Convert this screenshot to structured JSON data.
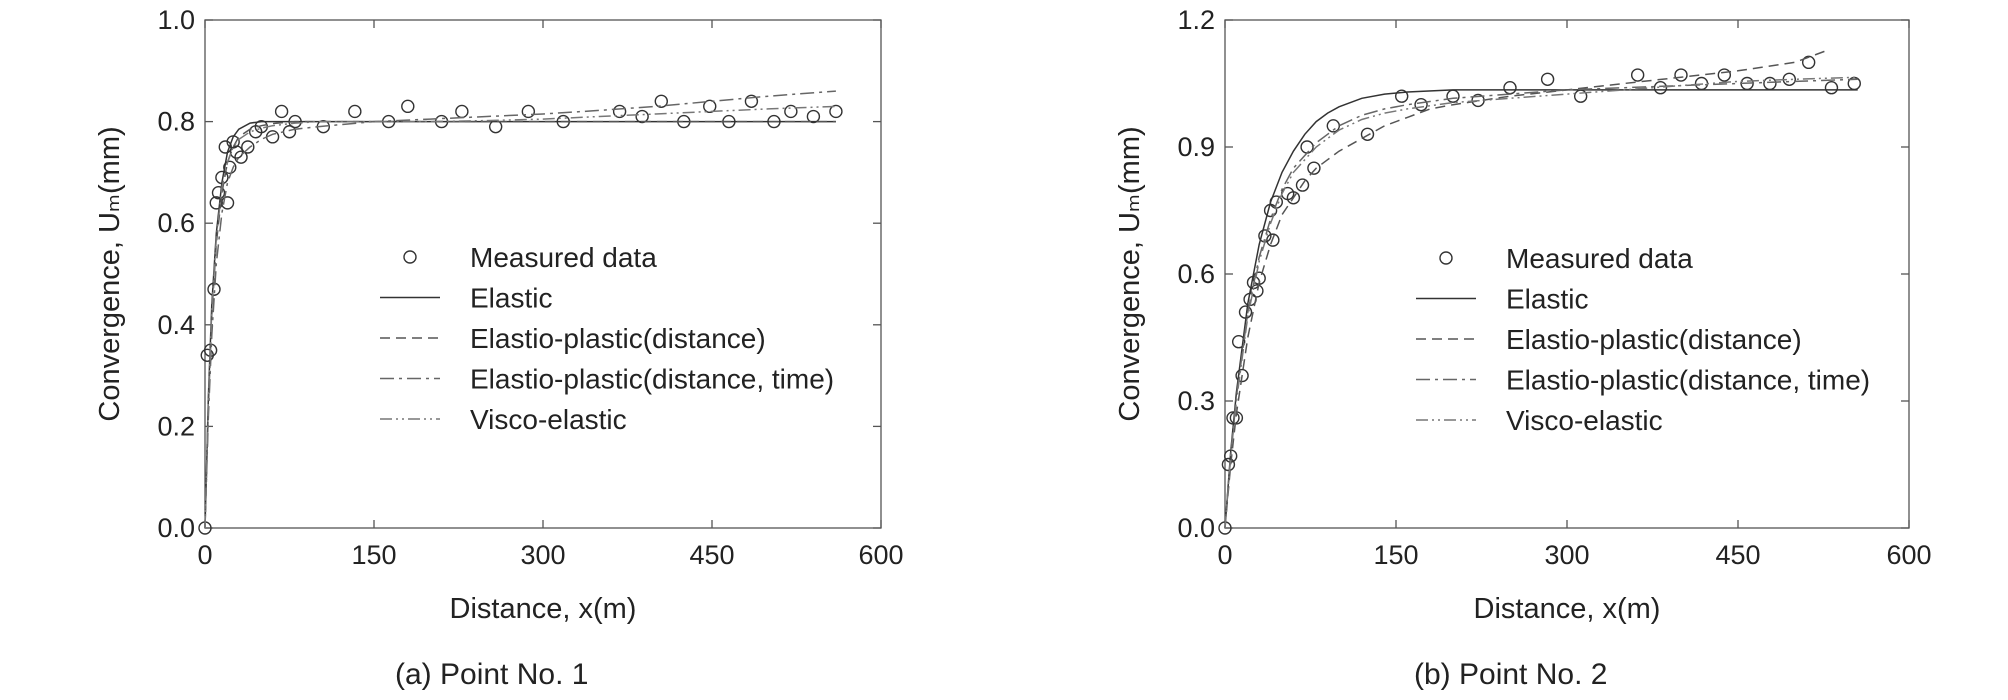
{
  "figure": {
    "panels": [
      {
        "caption": "(a) Point No. 1"
      },
      {
        "caption": "(b) Point No. 2"
      }
    ]
  },
  "chart_data": [
    {
      "type": "line",
      "xlabel": "Distance, x(m)",
      "ylabel": "Convergence, Uₘ(mm)",
      "xlim": [
        0,
        600
      ],
      "ylim": [
        0,
        1.0
      ],
      "xticks": [
        0,
        150,
        300,
        450,
        600
      ],
      "yticks": [
        0,
        0.2,
        0.4,
        0.6,
        0.8,
        1.0
      ],
      "xtick_labels": [
        "0",
        "150",
        "300",
        "450",
        "600"
      ],
      "ytick_labels": [
        "0.0",
        "0.2",
        "0.4",
        "0.6",
        "0.8",
        "1.0"
      ],
      "grid": false,
      "legend": {
        "position": "center",
        "entries": [
          {
            "label": "Measured data",
            "marker": "circle"
          },
          {
            "label": "Elastic",
            "style": "solid"
          },
          {
            "label": "Elastio-plastic(distance)",
            "style": "dashed"
          },
          {
            "label": "Elastio-plastic(distance, time)",
            "style": "dashdot"
          },
          {
            "label": "Visco-elastic",
            "style": "dashdotdot"
          }
        ]
      },
      "series": [
        {
          "name": "Measured data",
          "kind": "scatter",
          "x": [
            0,
            2,
            5,
            8,
            10,
            12,
            15,
            18,
            20,
            22,
            25,
            28,
            32,
            38,
            45,
            50,
            60,
            68,
            75,
            80,
            105,
            133,
            163,
            180,
            210,
            228,
            258,
            287,
            318,
            368,
            388,
            405,
            425,
            448,
            465,
            485,
            505,
            520,
            540,
            560
          ],
          "y": [
            0.0,
            0.34,
            0.35,
            0.47,
            0.64,
            0.66,
            0.69,
            0.75,
            0.64,
            0.71,
            0.76,
            0.74,
            0.73,
            0.75,
            0.78,
            0.79,
            0.77,
            0.82,
            0.78,
            0.8,
            0.79,
            0.82,
            0.8,
            0.83,
            0.8,
            0.82,
            0.79,
            0.82,
            0.8,
            0.82,
            0.81,
            0.84,
            0.8,
            0.83,
            0.8,
            0.84,
            0.8,
            0.82,
            0.81,
            0.82
          ]
        },
        {
          "name": "Elastic",
          "kind": "line",
          "style": "solid",
          "x": [
            0,
            3,
            6,
            10,
            15,
            20,
            25,
            30,
            40,
            50,
            60,
            80,
            100,
            150,
            200,
            300,
            400,
            500,
            560
          ],
          "y": [
            0.0,
            0.26,
            0.44,
            0.58,
            0.68,
            0.74,
            0.77,
            0.785,
            0.797,
            0.8,
            0.8,
            0.8,
            0.8,
            0.8,
            0.8,
            0.8,
            0.8,
            0.8,
            0.8
          ]
        },
        {
          "name": "Elastio-plastic(distance)",
          "kind": "line",
          "style": "dashed",
          "x": [
            0,
            3,
            6,
            10,
            15,
            20,
            25,
            30,
            40,
            50,
            60,
            80,
            100,
            150,
            200,
            300,
            400,
            500,
            560
          ],
          "y": [
            0.0,
            0.24,
            0.42,
            0.56,
            0.66,
            0.72,
            0.75,
            0.77,
            0.785,
            0.792,
            0.796,
            0.8,
            0.8,
            0.8,
            0.8,
            0.8,
            0.8,
            0.8,
            0.8
          ]
        },
        {
          "name": "Elastio-plastic(distance, time)",
          "kind": "line",
          "style": "dashdot",
          "x": [
            0,
            3,
            6,
            10,
            15,
            20,
            25,
            30,
            40,
            50,
            60,
            80,
            100,
            150,
            200,
            250,
            300,
            350,
            400,
            450,
            500,
            560
          ],
          "y": [
            0.0,
            0.22,
            0.38,
            0.52,
            0.62,
            0.68,
            0.71,
            0.73,
            0.75,
            0.765,
            0.775,
            0.785,
            0.79,
            0.8,
            0.805,
            0.81,
            0.815,
            0.822,
            0.83,
            0.84,
            0.85,
            0.86
          ]
        },
        {
          "name": "Visco-elastic",
          "kind": "line",
          "style": "dashdotdot",
          "x": [
            0,
            3,
            6,
            10,
            15,
            20,
            25,
            30,
            40,
            50,
            60,
            80,
            100,
            150,
            200,
            250,
            300,
            350,
            400,
            450,
            500,
            560
          ],
          "y": [
            0.0,
            0.25,
            0.43,
            0.57,
            0.67,
            0.72,
            0.75,
            0.765,
            0.78,
            0.787,
            0.792,
            0.797,
            0.8,
            0.8,
            0.8,
            0.802,
            0.805,
            0.81,
            0.815,
            0.82,
            0.825,
            0.83
          ]
        }
      ]
    },
    {
      "type": "line",
      "xlabel": "Distance, x(m)",
      "ylabel": "Convergence, Uₘ(mm)",
      "xlim": [
        0,
        600
      ],
      "ylim": [
        0,
        1.2
      ],
      "xticks": [
        0,
        150,
        300,
        450,
        600
      ],
      "yticks": [
        0,
        0.3,
        0.6,
        0.9,
        1.2
      ],
      "xtick_labels": [
        "0",
        "150",
        "300",
        "450",
        "600"
      ],
      "ytick_labels": [
        "0.0",
        "0.3",
        "0.6",
        "0.9",
        "1.2"
      ],
      "grid": false,
      "legend": {
        "position": "center",
        "entries": [
          {
            "label": "Measured data",
            "marker": "circle"
          },
          {
            "label": "Elastic",
            "style": "solid"
          },
          {
            "label": "Elastio-plastic(distance)",
            "style": "dashed"
          },
          {
            "label": "Elastio-plastic(distance, time)",
            "style": "dashdot"
          },
          {
            "label": "Visco-elastic",
            "style": "dashdotdot"
          }
        ]
      },
      "series": [
        {
          "name": "Measured data",
          "kind": "scatter",
          "x": [
            0,
            3,
            5,
            7,
            10,
            12,
            15,
            18,
            22,
            25,
            28,
            30,
            35,
            40,
            42,
            45,
            55,
            60,
            68,
            72,
            78,
            95,
            125,
            155,
            172,
            200,
            222,
            250,
            283,
            312,
            362,
            382,
            400,
            418,
            438,
            458,
            478,
            495,
            512,
            532,
            552
          ],
          "y": [
            0.0,
            0.15,
            0.17,
            0.26,
            0.26,
            0.44,
            0.36,
            0.51,
            0.54,
            0.58,
            0.56,
            0.59,
            0.69,
            0.75,
            0.68,
            0.77,
            0.79,
            0.78,
            0.81,
            0.9,
            0.85,
            0.95,
            0.93,
            1.02,
            1.0,
            1.02,
            1.01,
            1.04,
            1.06,
            1.02,
            1.07,
            1.04,
            1.07,
            1.05,
            1.07,
            1.05,
            1.05,
            1.06,
            1.1,
            1.04,
            1.05
          ]
        },
        {
          "name": "Elastic",
          "kind": "line",
          "style": "solid",
          "x": [
            0,
            5,
            10,
            20,
            30,
            40,
            50,
            60,
            70,
            80,
            90,
            100,
            120,
            140,
            160,
            200,
            250,
            300,
            400,
            500,
            555
          ],
          "y": [
            0.0,
            0.18,
            0.32,
            0.53,
            0.67,
            0.77,
            0.84,
            0.89,
            0.93,
            0.96,
            0.98,
            0.995,
            1.015,
            1.025,
            1.03,
            1.035,
            1.035,
            1.035,
            1.035,
            1.035,
            1.035
          ]
        },
        {
          "name": "Elastio-plastic(distance)",
          "kind": "line",
          "style": "dashed",
          "x": [
            0,
            5,
            10,
            20,
            30,
            40,
            50,
            60,
            70,
            80,
            90,
            100,
            120,
            140,
            160,
            180,
            200,
            250,
            300,
            350,
            400,
            450,
            500,
            530
          ],
          "y": [
            0.0,
            0.15,
            0.27,
            0.45,
            0.58,
            0.67,
            0.74,
            0.78,
            0.82,
            0.85,
            0.87,
            0.89,
            0.92,
            0.95,
            0.97,
            0.99,
            1.0,
            1.02,
            1.035,
            1.05,
            1.065,
            1.08,
            1.1,
            1.13
          ]
        },
        {
          "name": "Elastio-plastic(distance, time)",
          "kind": "line",
          "style": "dashdot",
          "x": [
            0,
            5,
            10,
            20,
            30,
            40,
            50,
            60,
            70,
            80,
            90,
            100,
            120,
            140,
            160,
            200,
            250,
            300,
            350,
            400,
            450,
            500,
            555
          ],
          "y": [
            0.0,
            0.17,
            0.31,
            0.51,
            0.64,
            0.73,
            0.8,
            0.85,
            0.88,
            0.91,
            0.93,
            0.95,
            0.975,
            0.99,
            1.0,
            1.015,
            1.025,
            1.035,
            1.04,
            1.045,
            1.05,
            1.055,
            1.06
          ]
        },
        {
          "name": "Visco-elastic",
          "kind": "line",
          "style": "dashdotdot",
          "x": [
            0,
            5,
            10,
            20,
            30,
            40,
            50,
            60,
            70,
            80,
            90,
            100,
            120,
            140,
            160,
            200,
            250,
            300,
            350,
            400,
            450,
            500,
            555
          ],
          "y": [
            0.0,
            0.17,
            0.3,
            0.5,
            0.63,
            0.72,
            0.79,
            0.84,
            0.87,
            0.9,
            0.92,
            0.94,
            0.965,
            0.98,
            0.99,
            1.005,
            1.015,
            1.025,
            1.035,
            1.045,
            1.055,
            1.06,
            1.065
          ]
        }
      ]
    }
  ]
}
